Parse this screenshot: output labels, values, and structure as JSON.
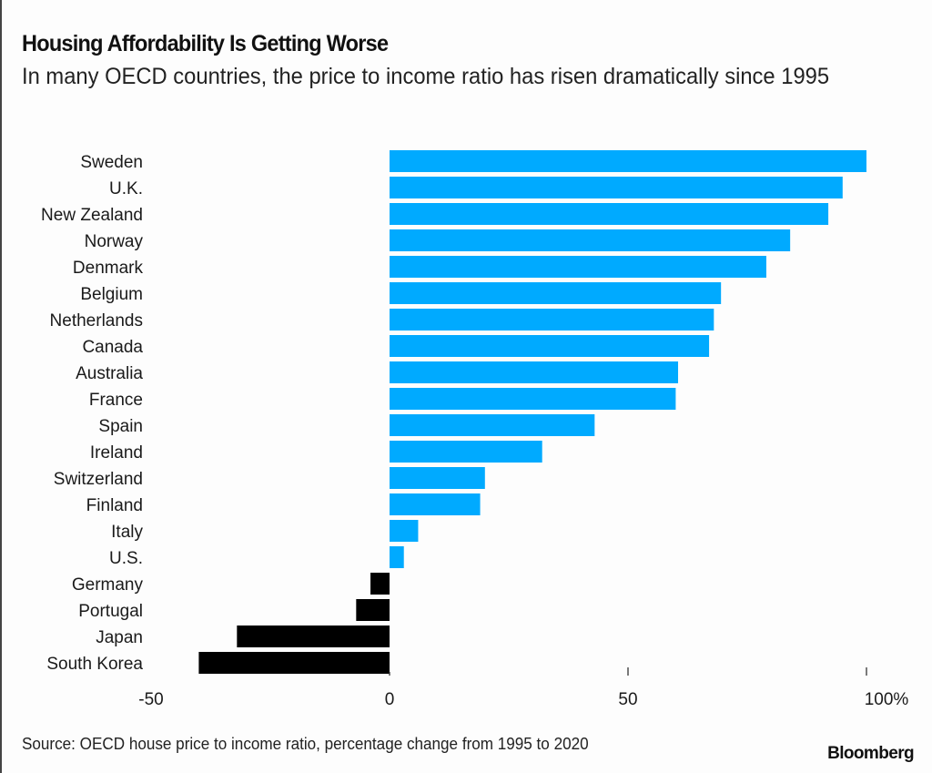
{
  "header": {
    "title": "Housing Affordability Is Getting Worse",
    "subtitle": "In many OECD countries, the price to income ratio has risen dramatically since 1995"
  },
  "footer": {
    "source": "Source: OECD house price to income ratio, percentage change from 1995 to 2020",
    "logo": "Bloomberg"
  },
  "colors": {
    "positive": "#00aaff",
    "negative": "#000000"
  },
  "chart_data": {
    "type": "bar",
    "orientation": "horizontal",
    "title": "Housing Affordability Is Getting Worse",
    "subtitle": "In many OECD countries, the price to income ratio has risen dramatically since 1995",
    "xlabel": "",
    "ylabel": "",
    "xlim": [
      -50,
      100
    ],
    "x_ticks": [
      -50,
      0,
      50,
      100
    ],
    "x_tick_labels": [
      "-50",
      "0",
      "50",
      "100%"
    ],
    "grid": false,
    "legend": "none",
    "categories": [
      "Sweden",
      "U.K.",
      "New Zealand",
      "Norway",
      "Denmark",
      "Belgium",
      "Netherlands",
      "Canada",
      "Australia",
      "France",
      "Spain",
      "Ireland",
      "Switzerland",
      "Finland",
      "Italy",
      "U.S.",
      "Germany",
      "Portugal",
      "Japan",
      "South Korea"
    ],
    "values": [
      100,
      95,
      92,
      84,
      79,
      69.5,
      68,
      67,
      60.5,
      60,
      43,
      32,
      20,
      19,
      6,
      3,
      -4,
      -7,
      -32,
      -40
    ],
    "source": "Source: OECD house price to income ratio, percentage change from 1995 to 2020"
  }
}
